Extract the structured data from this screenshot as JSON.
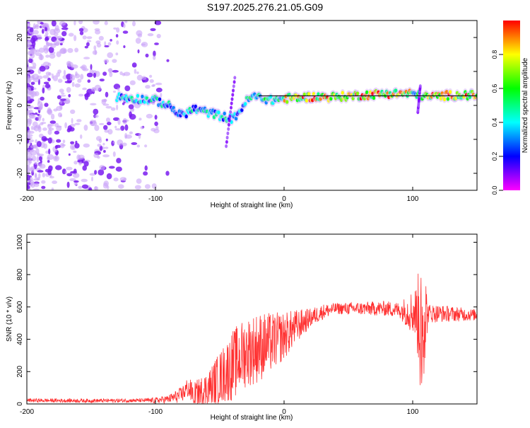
{
  "title": "S197.2025.276.21.05.G09",
  "colorbar": {
    "label": "Normalized spectral amplitude",
    "range": [
      0,
      1
    ],
    "ticks": [
      "0.0",
      "0.2",
      "0.4",
      "0.6",
      "0.8"
    ],
    "colors": [
      "#ff00ff",
      "#8000ff",
      "#0000ff",
      "#0080ff",
      "#00ffff",
      "#00ff80",
      "#00ff00",
      "#80ff00",
      "#ffff00",
      "#ff8000",
      "#ff0000"
    ]
  },
  "chart_data": [
    {
      "type": "heatmap",
      "name": "spectrogram",
      "xlabel": "Height of straight line (km)",
      "ylabel": "Frequency (Hz)",
      "xlim": [
        -200,
        150
      ],
      "ylim": [
        -25,
        25
      ],
      "xticks": [
        -200,
        -100,
        0,
        100
      ],
      "yticks": [
        -20,
        -10,
        0,
        10,
        20
      ],
      "ridge": {
        "description": "dominant frequency track",
        "x": [
          -130,
          -115,
          -100,
          -90,
          -80,
          -70,
          -60,
          -50,
          -40,
          -35,
          -30,
          -25,
          -20,
          -10,
          0,
          20,
          40,
          60,
          80,
          90,
          100,
          105,
          110,
          130,
          150
        ],
        "y": [
          2.5,
          2,
          1.5,
          0,
          -3,
          -1,
          -2,
          -3,
          -4,
          -2,
          1,
          2.5,
          2.5,
          1.5,
          2,
          2.5,
          2.5,
          3,
          3.5,
          3.5,
          3.5,
          3,
          2.5,
          3,
          3
        ]
      },
      "colormap_range": [
        0,
        1
      ]
    },
    {
      "type": "line",
      "name": "snr",
      "xlabel": "Height of straight line (km)",
      "ylabel": "SNR (10 * v/v)",
      "xlim": [
        -200,
        150
      ],
      "ylim": [
        0,
        1050
      ],
      "xticks": [
        -200,
        -100,
        0,
        100
      ],
      "yticks": [
        0,
        200,
        400,
        600,
        800,
        1000
      ],
      "color": "#ff3030",
      "envelope": {
        "x": [
          -200,
          -150,
          -100,
          -90,
          -80,
          -75,
          -70,
          -60,
          -50,
          -40,
          -30,
          -20,
          -10,
          0,
          10,
          20,
          30,
          40,
          60,
          80,
          90,
          100,
          103,
          106,
          108,
          110,
          120,
          150
        ],
        "y": [
          22,
          20,
          22,
          30,
          55,
          100,
          55,
          90,
          160,
          240,
          320,
          350,
          380,
          420,
          480,
          530,
          570,
          590,
          590,
          590,
          580,
          570,
          560,
          500,
          580,
          560,
          560,
          550
        ]
      },
      "noise_amplitude": {
        "x": [
          -200,
          -110,
          -90,
          -80,
          -60,
          -40,
          -20,
          0,
          20,
          40,
          90,
          102,
          108,
          112,
          150
        ],
        "y": [
          12,
          12,
          25,
          50,
          110,
          220,
          220,
          150,
          60,
          35,
          50,
          160,
          470,
          60,
          35
        ]
      }
    }
  ]
}
